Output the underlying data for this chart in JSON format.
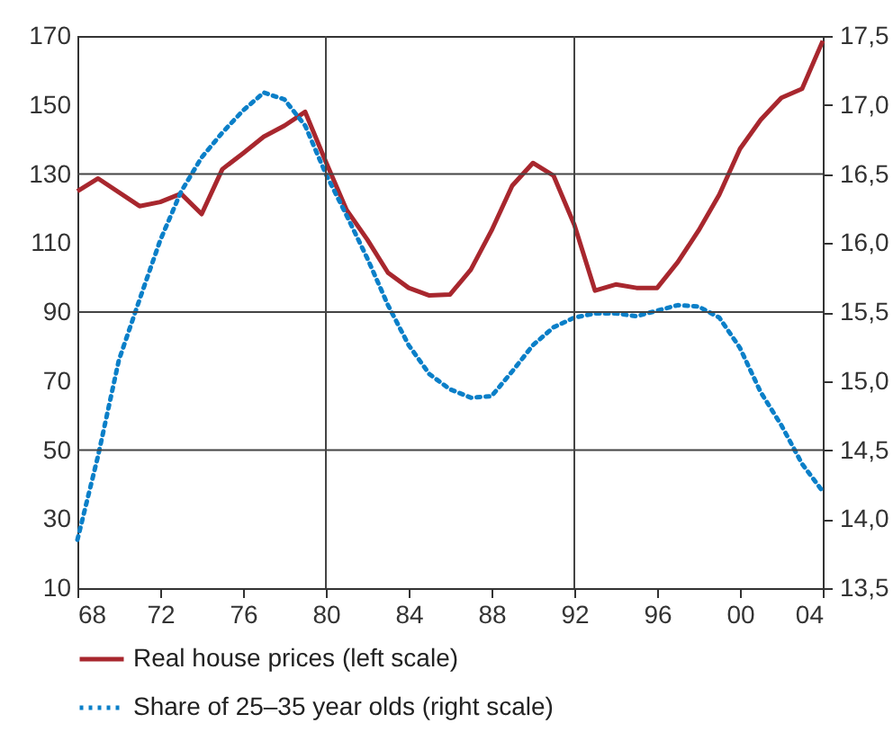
{
  "chart_data": {
    "type": "line",
    "x": [
      1968,
      1969,
      1971,
      1972,
      1973,
      1974,
      1975,
      1976,
      1977,
      1978,
      1979,
      1980,
      1981,
      1982,
      1983,
      1984,
      1985,
      1986,
      1987,
      1988,
      1989,
      1990,
      1991,
      1992,
      1993,
      1994,
      1995,
      1996,
      1997,
      1998,
      1999,
      2000,
      2001,
      2002,
      2003,
      2004
    ],
    "series": [
      {
        "name": "Real house prices (left scale)",
        "color": "#a8272e",
        "line_style": "solid",
        "values": [
          125,
          128.7,
          120.7,
          121.9,
          124.3,
          118.4,
          131.4,
          136,
          140.8,
          144,
          148,
          133.5,
          119.6,
          111,
          101.4,
          97,
          94.8,
          95.1,
          102.3,
          113.6,
          126.6,
          133.2,
          129.5,
          115.3,
          96.2,
          98,
          97,
          97,
          104.5,
          113.6,
          124,
          137.3,
          145.7,
          152.1,
          154.7,
          168.6
        ]
      },
      {
        "name": "Share of 25–35 year olds (right scale)",
        "color": "#0a7fc8",
        "line_style": "dotted",
        "axis": "y2",
        "x": [
          1968,
          1969,
          1970,
          1971,
          1972,
          1973,
          1974,
          1975,
          1976,
          1977,
          1978,
          1979,
          1980,
          1981,
          1982,
          1983,
          1984,
          1985,
          1986,
          1987,
          1988,
          1989,
          1990,
          1991,
          1992,
          1993,
          1994,
          1995,
          1996,
          1997,
          1998,
          1999,
          2000,
          2001,
          2002,
          2003,
          2004
        ],
        "values": [
          13.85,
          14.46,
          15.15,
          15.59,
          16.02,
          16.37,
          16.62,
          16.8,
          16.96,
          17.09,
          17.04,
          16.85,
          16.5,
          16.2,
          15.89,
          15.55,
          15.26,
          15.05,
          14.94,
          14.88,
          14.89,
          15.07,
          15.26,
          15.39,
          15.46,
          15.49,
          15.49,
          15.47,
          15.51,
          15.55,
          15.54,
          15.46,
          15.24,
          14.92,
          14.68,
          14.4,
          14.2
        ]
      }
    ],
    "xlim": [
      1968,
      2004
    ],
    "xticks": [
      {
        "value": 1968,
        "label": "68"
      },
      {
        "value": 1972,
        "label": "72"
      },
      {
        "value": 1976,
        "label": "76"
      },
      {
        "value": 1980,
        "label": "80"
      },
      {
        "value": 1984,
        "label": "84"
      },
      {
        "value": 1988,
        "label": "88"
      },
      {
        "value": 1992,
        "label": "92"
      },
      {
        "value": 1996,
        "label": "96"
      },
      {
        "value": 2000,
        "label": "00"
      },
      {
        "value": 2004,
        "label": "04"
      }
    ],
    "ylim": [
      10,
      170
    ],
    "yticks": [
      10,
      30,
      50,
      70,
      90,
      110,
      130,
      150,
      170
    ],
    "y2lim": [
      13.5,
      17.5
    ],
    "y2ticks": [
      {
        "value": 13.5,
        "label": "13,5"
      },
      {
        "value": 14,
        "label": "14,0"
      },
      {
        "value": 14.5,
        "label": "14,5"
      },
      {
        "value": 15,
        "label": "15,0"
      },
      {
        "value": 15.5,
        "label": "15,5"
      },
      {
        "value": 16,
        "label": "16,0"
      },
      {
        "value": 16.5,
        "label": "16,5"
      },
      {
        "value": 17,
        "label": "17,0"
      },
      {
        "value": 17.5,
        "label": "17,5"
      }
    ],
    "ref_lines": [
      {
        "axis": "x",
        "value": 1980
      },
      {
        "axis": "x",
        "value": 1992
      },
      {
        "axis": "y",
        "value": 50
      },
      {
        "axis": "y",
        "value": 90
      },
      {
        "axis": "y",
        "value": 130
      }
    ],
    "legend": "bottom"
  }
}
